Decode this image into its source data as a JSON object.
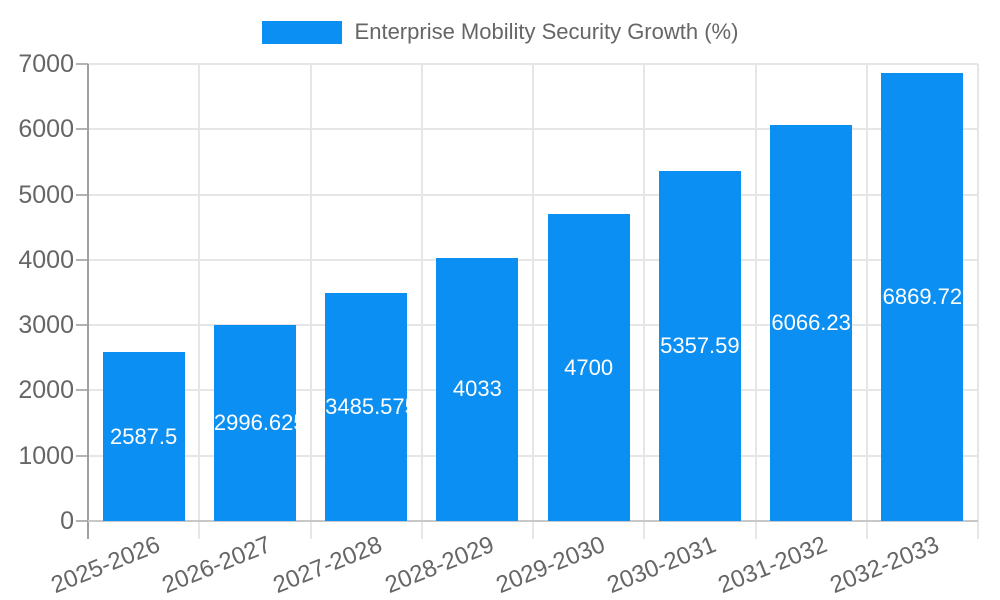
{
  "chart_data": {
    "type": "bar",
    "title": "Enterprise Mobility Security Growth (%)",
    "legend_entries": [
      "Enterprise Mobility Security Growth (%)"
    ],
    "legend_position": "top",
    "categories": [
      "2025-2026",
      "2026-2027",
      "2027-2028",
      "2028-2029",
      "2029-2030",
      "2030-2031",
      "2031-2032",
      "2032-2033"
    ],
    "series": [
      {
        "name": "Enterprise Mobility Security Growth (%)",
        "values": [
          2587.5,
          2996.625,
          3485.575,
          4033,
          4700,
          5357.59,
          6066.23,
          6869.72
        ]
      }
    ],
    "bar_labels": [
      "2587.5",
      "2996.625",
      "3485.575",
      "4033",
      "4700",
      "5357.59",
      "6066.23",
      "6869.72"
    ],
    "xlabel": "",
    "ylabel": "",
    "ylim": [
      0,
      7000
    ],
    "yticks": [
      0,
      1000,
      2000,
      3000,
      4000,
      5000,
      6000,
      7000
    ],
    "grid": true,
    "x_tick_rotation_deg": -22,
    "colors": {
      "bar": "#0b8ff2",
      "bar_label": "#ffffff",
      "grid": "#e6e6e6",
      "axis_y": "#a0a0a0",
      "axis_x": "#c8c8c8",
      "tick_mark": "#b3b3b3",
      "tick_label": "#666666",
      "legend_text": "#666666",
      "background": "#ffffff"
    }
  }
}
